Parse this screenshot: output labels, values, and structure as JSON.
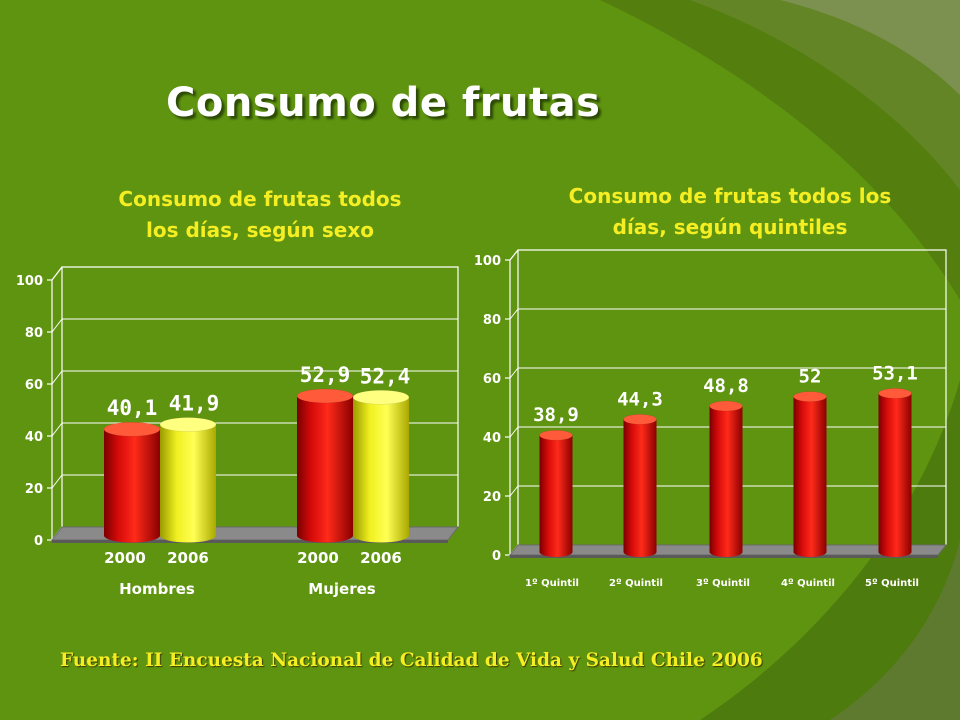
{
  "title": "Consumo de frutas",
  "source": "Fuente: II Encuesta Nacional de Calidad de Vida y Salud Chile 2006",
  "colors": {
    "background": "#5f9410",
    "title_text": "#ffffff",
    "chart_title_text": "#f5ee22",
    "bar_red": "#e11010",
    "bar_yellow": "#f2f224",
    "floor": "#8a8a8a"
  },
  "chart_data": [
    {
      "type": "bar",
      "title": "Consumo de frutas todos los días, según sexo",
      "title_lines": [
        "Consumo de frutas todos",
        "los días, según sexo"
      ],
      "groups": [
        "Hombres",
        "Mujeres"
      ],
      "categories": [
        "2000",
        "2006",
        "2000",
        "2006"
      ],
      "values": [
        40.1,
        41.9,
        52.9,
        52.4
      ],
      "data_labels": [
        "40,1",
        "41,9",
        "52,9",
        "52,4"
      ],
      "bar_colors": [
        "red",
        "yellow",
        "red",
        "yellow"
      ],
      "ylim": [
        0,
        100
      ],
      "yticks": [
        0,
        20,
        40,
        60,
        80,
        100
      ],
      "grid": true,
      "style": "3d-cylinder"
    },
    {
      "type": "bar",
      "title": "Consumo de frutas todos los días, según quintiles",
      "title_lines": [
        "Consumo de frutas todos los",
        "días, según quintiles"
      ],
      "categories": [
        "1º Quintil",
        "2º Quintil",
        "3º Quintil",
        "4º Quintil",
        "5º Quintil"
      ],
      "values": [
        38.9,
        44.3,
        48.8,
        52,
        53.1
      ],
      "data_labels": [
        "38,9",
        "44,3",
        "48,8",
        "52",
        "53,1"
      ],
      "bar_colors": [
        "red",
        "red",
        "red",
        "red",
        "red"
      ],
      "ylim": [
        0,
        100
      ],
      "yticks": [
        0,
        20,
        40,
        60,
        80,
        100
      ],
      "grid": true,
      "style": "3d-cylinder"
    }
  ]
}
